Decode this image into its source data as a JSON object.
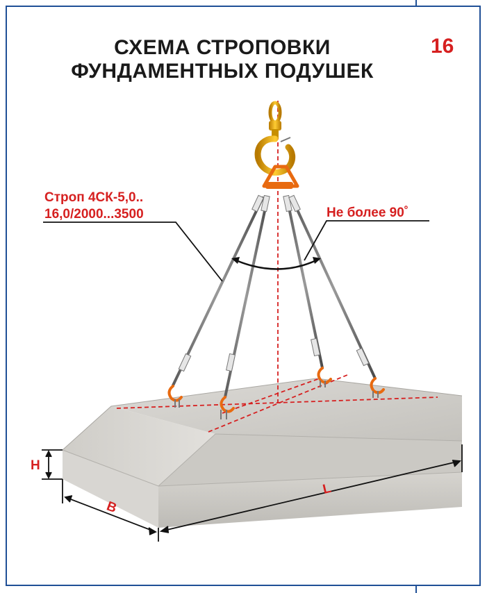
{
  "title_line1": "СХЕМА СТРОПОВКИ",
  "title_line2": "ФУНДАМЕНТНЫХ ПОДУШЕК",
  "sheet_number": "16",
  "sling_label_line1": "Строп 4СК-5,0..",
  "sling_label_line2": "16,0/2000...3500",
  "angle_label": "Не более 90˚",
  "dim_height": "H",
  "dim_length": "L",
  "dim_width": "B",
  "colors": {
    "accent_red": "#d62020",
    "frame_blue": "#1f4f96",
    "hook_yellow": "#e8a400",
    "shackle_orange": "#e86a10",
    "concrete": "#c9c7c2"
  }
}
